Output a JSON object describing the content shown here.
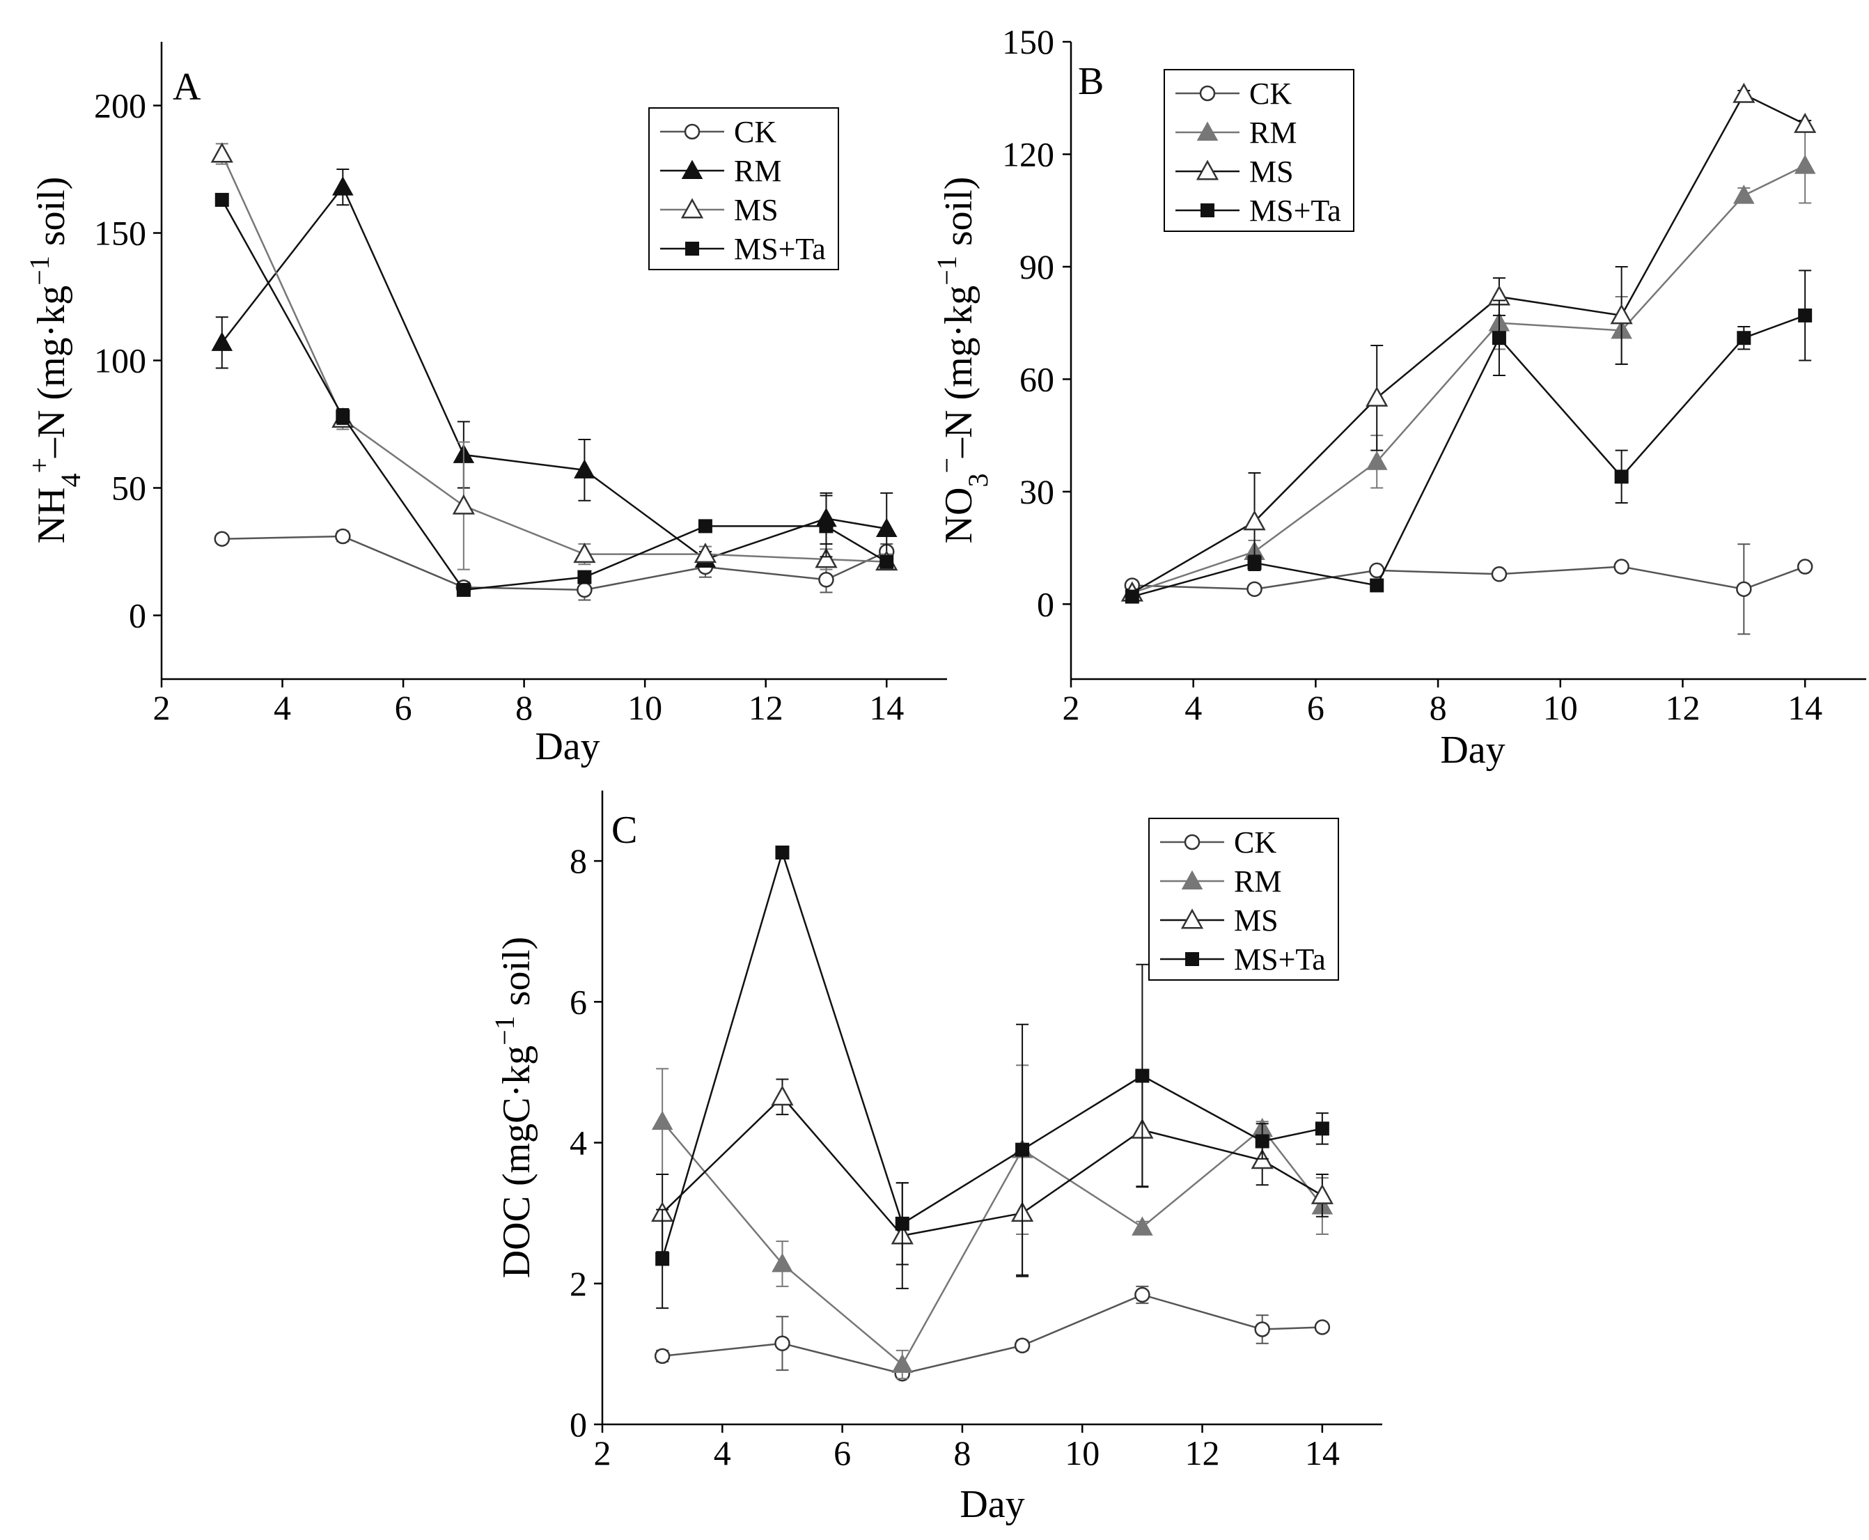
{
  "figure": {
    "colors": {
      "black": "#111111",
      "gray": "#777777",
      "white": "#ffffff"
    }
  },
  "chart_data": [
    {
      "type": "line",
      "panel": "A",
      "xlabel": "Day",
      "ylabel_parts": {
        "main": "NH",
        "sub": "4",
        "sup": "+",
        "rest": "–N (mg·kg",
        "sup2": "−1",
        "end": " soil)"
      },
      "xlim": [
        2,
        15
      ],
      "ylim": [
        -25,
        225
      ],
      "xticks": [
        2,
        4,
        6,
        8,
        10,
        12,
        14
      ],
      "yticks": [
        0,
        50,
        100,
        150,
        200
      ],
      "legend_position": "top-right",
      "x": [
        3,
        5,
        7,
        9,
        11,
        13,
        14
      ],
      "series": [
        {
          "name": "CK",
          "marker": "circle-open",
          "color": "#555555",
          "values": [
            30,
            31,
            11,
            10,
            19,
            14,
            25
          ],
          "errors": [
            1,
            2,
            2,
            4,
            4,
            5,
            3
          ]
        },
        {
          "name": "RM",
          "marker": "triangle-filled",
          "color": "#111111",
          "values": [
            107,
            168,
            63,
            57,
            22,
            38,
            34
          ],
          "errors": [
            10,
            7,
            13,
            12,
            3,
            10,
            14
          ]
        },
        {
          "name": "MS",
          "marker": "triangle-open",
          "color": "#777777",
          "values": [
            181,
            77,
            43,
            24,
            24,
            22,
            21
          ],
          "errors": [
            4,
            4,
            25,
            4,
            3,
            4,
            3
          ]
        },
        {
          "name": "MS+Ta",
          "marker": "square-filled",
          "color": "#111111",
          "values": [
            163,
            78,
            10,
            15,
            35,
            35,
            21
          ],
          "errors": [
            2,
            3,
            2,
            2,
            2,
            12,
            2
          ]
        }
      ]
    },
    {
      "type": "line",
      "panel": "B",
      "xlabel": "Day",
      "ylabel_parts": {
        "main": "NO",
        "sub": "3",
        "sup": "−",
        "rest": "–N (mg·kg",
        "sup2": "−1",
        "end": " soil)"
      },
      "xlim": [
        2,
        15
      ],
      "ylim": [
        -20,
        150
      ],
      "xticks": [
        2,
        4,
        6,
        8,
        10,
        12,
        14
      ],
      "yticks": [
        0,
        30,
        60,
        90,
        120,
        150
      ],
      "legend_position": "top-left",
      "x": [
        3,
        5,
        7,
        9,
        11,
        13,
        14
      ],
      "series": [
        {
          "name": "CK",
          "marker": "circle-open",
          "color": "#555555",
          "values": [
            5,
            4,
            9,
            8,
            10,
            4,
            10
          ],
          "errors": [
            1,
            1,
            1,
            1,
            1,
            12,
            1
          ]
        },
        {
          "name": "RM",
          "marker": "triangle-filled",
          "color": "#777777",
          "values": [
            3,
            14,
            38,
            75,
            73,
            109,
            117
          ],
          "errors": [
            1,
            3,
            7,
            7,
            9,
            2,
            10
          ]
        },
        {
          "name": "MS",
          "marker": "triangle-open",
          "color": "#111111",
          "values": [
            3,
            22,
            55,
            82,
            77,
            136,
            128
          ],
          "errors": [
            1,
            13,
            14,
            5,
            13,
            1,
            1
          ]
        },
        {
          "name": "MS+Ta",
          "marker": "square-filled",
          "color": "#111111",
          "values": [
            2,
            11,
            5,
            71,
            34,
            71,
            77
          ],
          "errors": [
            1,
            2,
            1,
            10,
            7,
            3,
            12
          ]
        }
      ]
    },
    {
      "type": "line",
      "panel": "C",
      "xlabel": "Day",
      "ylabel_parts": {
        "main": "DOC (mgC·kg",
        "sub": "",
        "sup": "",
        "rest": "",
        "sup2": "−1",
        "end": " soil)"
      },
      "xlim": [
        2,
        15
      ],
      "ylim": [
        0,
        9
      ],
      "xticks": [
        2,
        4,
        6,
        8,
        10,
        12,
        14
      ],
      "yticks": [
        0,
        2,
        4,
        6,
        8
      ],
      "legend_position": "top-right",
      "x": [
        3,
        5,
        7,
        9,
        11,
        13,
        14
      ],
      "series": [
        {
          "name": "CK",
          "marker": "circle-open",
          "color": "#555555",
          "values": [
            0.97,
            1.15,
            0.72,
            1.12,
            1.84,
            1.35,
            1.38
          ],
          "errors": [
            0.08,
            0.38,
            0.06,
            0.07,
            0.12,
            0.2,
            0.04
          ]
        },
        {
          "name": "RM",
          "marker": "triangle-filled",
          "color": "#777777",
          "values": [
            4.3,
            2.28,
            0.85,
            3.9,
            2.8,
            4.2,
            3.1
          ],
          "errors": [
            0.75,
            0.32,
            0.2,
            1.2,
            0.08,
            0.1,
            0.4
          ]
        },
        {
          "name": "MS",
          "marker": "triangle-open",
          "color": "#111111",
          "values": [
            3.0,
            4.65,
            2.68,
            3.0,
            4.18,
            3.75,
            3.25
          ],
          "errors": [
            0.55,
            0.25,
            0.75,
            0.9,
            0.8,
            0.35,
            0.3
          ]
        },
        {
          "name": "MS+Ta",
          "marker": "square-filled",
          "color": "#111111",
          "values": [
            2.35,
            8.12,
            2.85,
            3.9,
            4.95,
            4.02,
            4.2
          ],
          "errors": [
            0.7,
            0.05,
            0.58,
            1.78,
            1.58,
            0.25,
            0.22
          ]
        }
      ]
    }
  ]
}
